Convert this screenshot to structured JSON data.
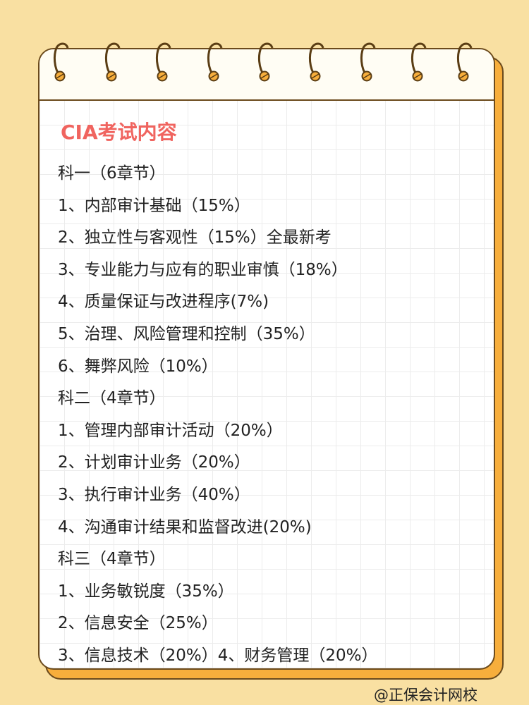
{
  "title": "CIA考试内容",
  "lines": [
    "科一（6章节）",
    "1、内部审计基础（15%）",
    "2、独立性与客观性（15%）全最新考",
    "3、专业能力与应有的职业审慎（18%）",
    "4、质量保证与改进程序(7%)",
    "5、治理、风险管理和控制（35%）",
    "6、舞弊风险（10%）",
    "科二（4章节）",
    "1、管理内部审计活动（20%）",
    "2、计划审计业务（20%）",
    "3、执行审计业务（40%）",
    "4、沟通审计结果和监督改进(20%)",
    "科三（4章节）",
    "1、业务敏锐度（35%）",
    "2、信息安全（25%）",
    "3、信息技术（20%）4、财务管理（20%）"
  ],
  "watermark": "@正保会计网校",
  "colors": {
    "background": "#f9e0a2",
    "title": "#f0645f",
    "accent": "#f7ae3c"
  }
}
